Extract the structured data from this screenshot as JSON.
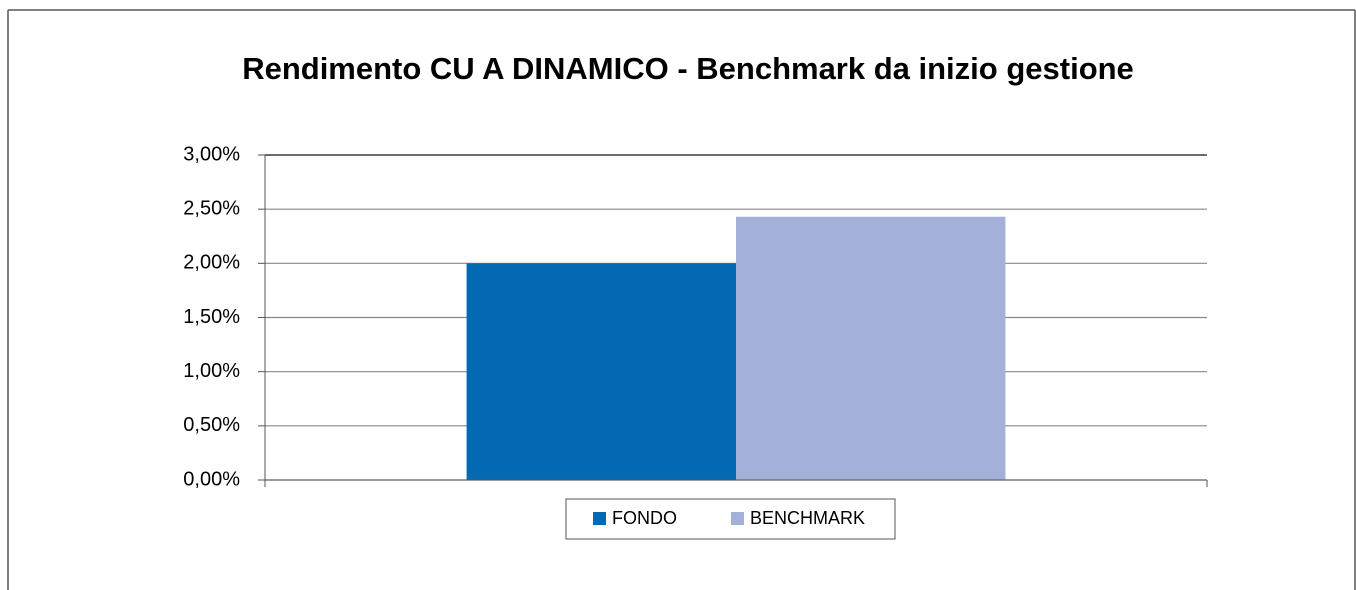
{
  "chart_data": {
    "type": "bar",
    "title": "Rendimento CU A DINAMICO - Benchmark da inizio gestione",
    "categories": [
      null
    ],
    "series": [
      {
        "name": "FONDO",
        "color": "#0369b3",
        "values": [
          2.0
        ]
      },
      {
        "name": "BENCHMARK",
        "color": "#a3b1d8",
        "values": [
          2.43
        ]
      }
    ],
    "ylim": [
      0,
      3
    ],
    "yticks": [
      {
        "value": 0,
        "label": "0,00%"
      },
      {
        "value": 0.5,
        "label": "0,50%"
      },
      {
        "value": 1,
        "label": "1,00%"
      },
      {
        "value": 1.5,
        "label": "1,50%"
      },
      {
        "value": 2,
        "label": "2,00%"
      },
      {
        "value": 2.5,
        "label": "2,50%"
      },
      {
        "value": 3,
        "label": "3,00%"
      }
    ],
    "grid": true,
    "legend": "bottom"
  }
}
